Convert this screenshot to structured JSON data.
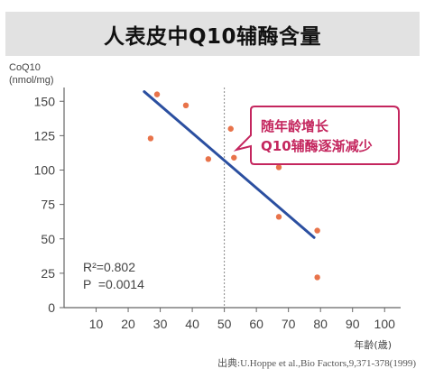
{
  "title": "人表皮中Q10辅酶含量",
  "source": "出典:U.Hoppe et al.,Bio Factors,9,371-378(1999)",
  "colors": {
    "title_bg": "#e2e2e2",
    "points": "#e8734a",
    "regression": "#2b4fa0",
    "callout_border": "#c4265e",
    "callout_text": "#c4265e",
    "axis": "#666666",
    "text": "#444444"
  },
  "chart_data": {
    "type": "scatter",
    "ylabel_line1": "CoQ10",
    "ylabel_line2": "(nmol/mg)",
    "xlabel": "年齢(歳)",
    "xlim": [
      0,
      105
    ],
    "ylim": [
      0,
      160
    ],
    "x_ticks": [
      10,
      20,
      30,
      40,
      50,
      60,
      70,
      80,
      90,
      100
    ],
    "y_ticks": [
      0,
      25,
      50,
      75,
      100,
      125,
      150
    ],
    "reference_line_x": 50,
    "points": [
      {
        "x": 27,
        "y": 123
      },
      {
        "x": 29,
        "y": 155
      },
      {
        "x": 38,
        "y": 147
      },
      {
        "x": 45,
        "y": 108
      },
      {
        "x": 52,
        "y": 130
      },
      {
        "x": 53,
        "y": 109
      },
      {
        "x": 67,
        "y": 102
      },
      {
        "x": 67,
        "y": 66
      },
      {
        "x": 79,
        "y": 56
      },
      {
        "x": 79,
        "y": 22
      }
    ],
    "regression": {
      "x1": 25,
      "y1": 157,
      "x2": 78,
      "y2": 51
    },
    "stats": {
      "r2": "R²=0.802",
      "p": "P  =0.0014"
    },
    "annotation": {
      "line1": "随年龄增长",
      "line2": "Q10辅酶逐渐减少"
    }
  }
}
